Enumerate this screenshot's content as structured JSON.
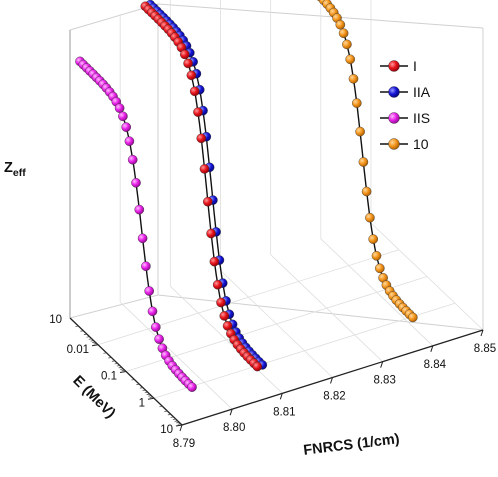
{
  "chart_data": {
    "type": "line",
    "style": "3d-waterfall",
    "zlabel": {
      "main": "Z",
      "sub": "eff"
    },
    "ylabel": "E (MeV)",
    "xlabel": "FNRCS (1/cm)",
    "x_ticks": [
      "8.79",
      "8.80",
      "8.81",
      "8.82",
      "8.83",
      "8.84",
      "8.85"
    ],
    "y_ticks": [
      "0.01",
      "0.1",
      "1",
      "10"
    ],
    "z_ticks": [
      "10"
    ],
    "xlim": [
      8.79,
      8.85
    ],
    "ylim": [
      0.001,
      10
    ],
    "y_scale": "log",
    "grid": true,
    "legend_position": "top-right",
    "series": [
      {
        "name": "I",
        "color": "#e8141c",
        "x": 8.805,
        "z_top": 100,
        "z_floor": 12
      },
      {
        "name": "IIA",
        "color": "#1515d8",
        "x": 8.806,
        "z_top": 100,
        "z_floor": 12
      },
      {
        "name": "IIS",
        "color": "#ea22ea",
        "x": 8.792,
        "z_top": 88,
        "z_floor": 12
      },
      {
        "name": "10",
        "color": "#f5961c",
        "x": 8.836,
        "z_top": 93,
        "z_floor": 12
      }
    ]
  }
}
